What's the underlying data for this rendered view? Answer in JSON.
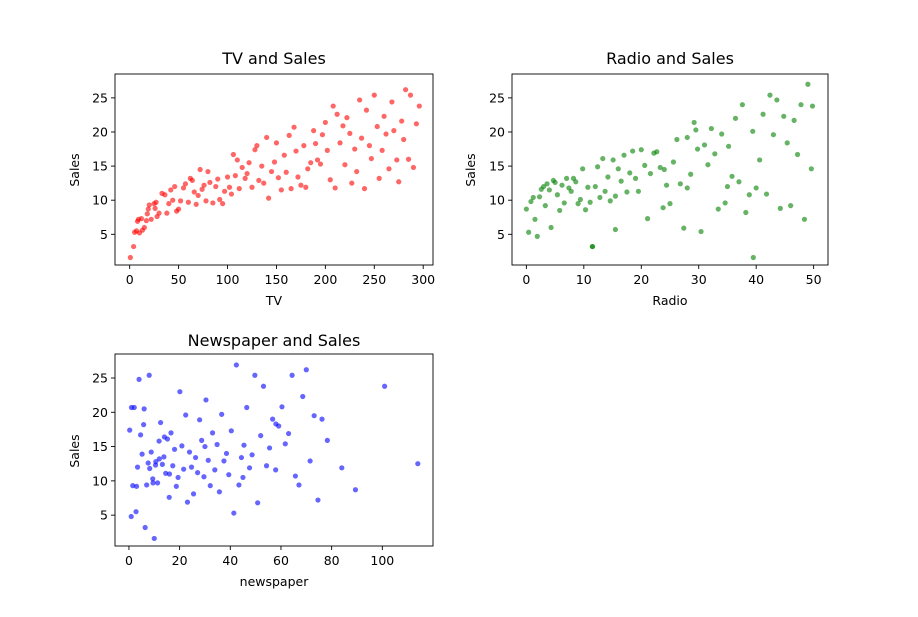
{
  "chart_data": [
    {
      "type": "scatter",
      "title": "TV and Sales",
      "xlabel": "TV",
      "ylabel": "Sales",
      "xlim": [
        -15,
        310
      ],
      "ylim": [
        0.5,
        28.5
      ],
      "xticks": [
        0,
        50,
        100,
        150,
        200,
        250,
        300
      ],
      "yticks": [
        5,
        10,
        15,
        20,
        25
      ],
      "color": "#ff0000",
      "grid": false,
      "series": [
        {
          "x": [
            0.7,
            4,
            5,
            7,
            8,
            9,
            10,
            12,
            13,
            15,
            17,
            18,
            19,
            20,
            22,
            25,
            26,
            27,
            28,
            30,
            33,
            36,
            38,
            40,
            42,
            44,
            46,
            48,
            50,
            52,
            55,
            57,
            60,
            62,
            64,
            66,
            68,
            70,
            72,
            74,
            76,
            78,
            80,
            82,
            85,
            88,
            90,
            92,
            95,
            97,
            100,
            102,
            104,
            106,
            108,
            110,
            112,
            115,
            118,
            120,
            122,
            125,
            128,
            130,
            132,
            135,
            137,
            140,
            142,
            145,
            148,
            150,
            152,
            155,
            158,
            160,
            163,
            165,
            168,
            170,
            172,
            175,
            178,
            180,
            182,
            185,
            188,
            190,
            192,
            195,
            197,
            200,
            202,
            205,
            208,
            210,
            212,
            215,
            218,
            220,
            222,
            225,
            227,
            230,
            232,
            235,
            237,
            240,
            242,
            245,
            247,
            250,
            253,
            255,
            258,
            260,
            262,
            265,
            268,
            270,
            273,
            275,
            278,
            280,
            282,
            285,
            287,
            290,
            293,
            296
          ],
          "y": [
            1.6,
            3.2,
            5.3,
            5.5,
            6.9,
            7.2,
            5.2,
            7.3,
            5.6,
            6.0,
            7.0,
            8.0,
            8.7,
            9.3,
            7.2,
            9.5,
            8.8,
            9.7,
            7.6,
            8.1,
            11.0,
            10.8,
            8.1,
            9.5,
            11.5,
            10.0,
            12.0,
            8.4,
            8.7,
            9.9,
            11.8,
            12.4,
            9.7,
            13.2,
            12.9,
            11.2,
            9.4,
            10.7,
            14.5,
            11.6,
            12.2,
            9.9,
            14.2,
            12.6,
            9.6,
            12.0,
            13.1,
            10.1,
            9.5,
            11.3,
            13.4,
            11.9,
            10.9,
            16.7,
            13.6,
            15.9,
            11.7,
            14.8,
            13.2,
            13.9,
            15.5,
            11.9,
            17.4,
            18.0,
            12.9,
            15.0,
            12.5,
            19.2,
            10.3,
            14.2,
            15.6,
            18.4,
            13.3,
            11.5,
            16.6,
            14.1,
            19.5,
            11.7,
            20.7,
            17.2,
            13.4,
            12.2,
            18.0,
            11.9,
            14.6,
            15.5,
            20.2,
            18.3,
            15.9,
            15.3,
            19.6,
            21.4,
            17.3,
            13.0,
            23.8,
            11.8,
            22.6,
            18.4,
            20.9,
            15.2,
            22.1,
            19.8,
            12.5,
            17.5,
            14.2,
            24.7,
            19.1,
            11.7,
            23.2,
            18.0,
            16.1,
            25.4,
            20.8,
            13.2,
            17.3,
            22.3,
            19.7,
            14.6,
            24.4,
            20.2,
            15.9,
            12.7,
            21.6,
            18.9,
            26.2,
            16.0,
            25.4,
            14.8,
            21.2,
            23.8
          ]
        }
      ]
    },
    {
      "type": "scatter",
      "title": "Radio and Sales",
      "xlabel": "Radio",
      "ylabel": "Sales",
      "xlim": [
        -2.5,
        52.5
      ],
      "ylim": [
        0.5,
        28.5
      ],
      "xticks": [
        0,
        10,
        20,
        30,
        40,
        50
      ],
      "yticks": [
        5,
        10,
        15,
        20,
        25
      ],
      "color": "#008000",
      "grid": false,
      "series": [
        {
          "x": [
            0.0,
            0.4,
            0.8,
            1.2,
            1.5,
            1.9,
            2.3,
            2.6,
            3.0,
            3.3,
            3.6,
            4.0,
            4.3,
            4.7,
            5.0,
            5.4,
            5.8,
            6.2,
            6.6,
            7.0,
            7.4,
            7.8,
            8.2,
            8.6,
            9.0,
            9.4,
            9.8,
            10.3,
            10.7,
            11.1,
            11.5,
            12.0,
            12.4,
            12.8,
            13.3,
            13.7,
            14.2,
            14.6,
            15.1,
            15.5,
            16.0,
            16.5,
            17.0,
            17.5,
            18.0,
            18.5,
            19.0,
            19.5,
            20.0,
            20.6,
            21.1,
            21.6,
            22.2,
            22.7,
            23.3,
            23.8,
            24.4,
            25.0,
            25.6,
            26.2,
            26.8,
            27.4,
            28.0,
            28.6,
            29.2,
            29.8,
            30.4,
            31.0,
            31.6,
            32.2,
            32.8,
            33.4,
            34.0,
            34.6,
            35.2,
            35.8,
            36.4,
            37.0,
            37.6,
            38.2,
            38.8,
            39.4,
            40.0,
            40.6,
            41.2,
            41.8,
            42.4,
            43.0,
            43.6,
            44.2,
            44.8,
            45.4,
            46.0,
            46.6,
            47.2,
            47.8,
            48.4,
            49.0,
            49.6,
            49.8,
            11.5,
            39.5,
            28.0,
            29.5,
            24.0,
            35.0,
            15.5
          ],
          "y": [
            8.7,
            5.3,
            9.8,
            10.4,
            7.2,
            4.7,
            10.5,
            11.6,
            12.0,
            9.2,
            12.4,
            11.5,
            6.0,
            12.9,
            12.6,
            10.8,
            8.5,
            12.2,
            9.6,
            13.2,
            11.8,
            11.3,
            13.2,
            12.7,
            9.5,
            10.1,
            14.6,
            8.6,
            11.9,
            9.7,
            3.2,
            12.0,
            14.9,
            10.4,
            16.1,
            11.3,
            13.4,
            9.9,
            15.9,
            5.7,
            14.6,
            12.8,
            16.6,
            11.2,
            14.0,
            17.2,
            13.2,
            11.3,
            17.4,
            15.1,
            7.3,
            13.9,
            16.9,
            17.1,
            14.8,
            8.9,
            12.2,
            9.5,
            15.6,
            18.9,
            12.4,
            5.9,
            19.2,
            13.8,
            21.4,
            17.5,
            5.4,
            18.1,
            15.2,
            20.5,
            16.8,
            8.7,
            19.7,
            9.6,
            17.9,
            13.5,
            22.0,
            12.7,
            24.0,
            8.2,
            10.8,
            20.1,
            11.8,
            15.9,
            22.6,
            10.9,
            25.4,
            19.6,
            24.7,
            8.8,
            22.3,
            18.4,
            9.2,
            21.7,
            16.7,
            24.0,
            7.2,
            27.0,
            14.6,
            23.8,
            3.2,
            1.6,
            11.8,
            20.3,
            14.5,
            12.0,
            10.6
          ]
        }
      ]
    },
    {
      "type": "scatter",
      "title": "Newspaper and Sales",
      "xlabel": "newspaper",
      "ylabel": "Sales",
      "xlim": [
        -5.5,
        120
      ],
      "ylim": [
        0.5,
        28.5
      ],
      "xticks": [
        0,
        20,
        40,
        60,
        80,
        100
      ],
      "yticks": [
        5,
        10,
        15,
        20,
        25
      ],
      "color": "#0000ff",
      "grid": false,
      "series": [
        {
          "x": [
            0.3,
            0.9,
            1.5,
            2.1,
            2.8,
            3.4,
            4.0,
            4.6,
            5.2,
            5.8,
            6.4,
            7.0,
            7.6,
            8.2,
            8.8,
            9.4,
            10.0,
            10.6,
            11.3,
            11.9,
            12.5,
            13.2,
            13.8,
            14.5,
            15.2,
            15.9,
            16.6,
            17.3,
            18.0,
            18.7,
            19.4,
            20.1,
            20.9,
            21.6,
            22.4,
            23.1,
            23.9,
            24.7,
            25.5,
            26.3,
            27.1,
            27.9,
            28.7,
            29.6,
            30.4,
            31.3,
            32.1,
            33.0,
            33.9,
            34.8,
            35.7,
            36.6,
            37.5,
            38.5,
            39.4,
            40.4,
            41.4,
            42.4,
            43.4,
            44.4,
            45.4,
            46.5,
            47.6,
            48.6,
            49.7,
            50.8,
            52.0,
            53.1,
            54.3,
            55.5,
            56.7,
            57.9,
            59.1,
            60.4,
            61.7,
            63.0,
            64.4,
            65.7,
            67.1,
            68.6,
            70.0,
            71.5,
            73.1,
            74.6,
            76.2,
            78.3,
            84.0,
            89.4,
            100.9,
            114.0,
            8.0,
            9.5,
            12.0,
            14.0,
            16.0,
            6.0,
            3.0,
            1.0,
            10.5,
            30.0,
            45.0,
            58.0
          ],
          "y": [
            17.4,
            4.8,
            9.3,
            20.7,
            5.5,
            12.0,
            24.8,
            16.7,
            13.9,
            18.2,
            3.2,
            9.4,
            12.6,
            11.8,
            14.2,
            10.3,
            1.6,
            12.8,
            9.7,
            15.8,
            18.5,
            12.4,
            13.5,
            11.1,
            16.1,
            7.6,
            17.0,
            12.2,
            14.6,
            9.2,
            10.5,
            23.0,
            15.1,
            11.7,
            19.6,
            6.9,
            14.2,
            12.0,
            8.1,
            13.4,
            11.2,
            18.9,
            15.9,
            10.6,
            21.8,
            13.0,
            9.3,
            17.0,
            11.6,
            15.3,
            8.4,
            19.7,
            12.9,
            14.0,
            10.9,
            17.3,
            5.3,
            26.9,
            9.4,
            13.4,
            15.2,
            20.7,
            11.9,
            13.8,
            25.4,
            6.8,
            16.6,
            23.8,
            12.2,
            14.8,
            19.0,
            11.6,
            18.0,
            20.8,
            15.4,
            16.9,
            25.4,
            10.7,
            9.4,
            22.3,
            26.2,
            12.9,
            19.5,
            7.2,
            19.0,
            15.9,
            11.9,
            8.7,
            23.8,
            12.5,
            25.4,
            9.7,
            13.2,
            16.4,
            11.0,
            20.5,
            9.2,
            20.7,
            12.3,
            15.0,
            10.5,
            18.3
          ]
        }
      ]
    }
  ]
}
